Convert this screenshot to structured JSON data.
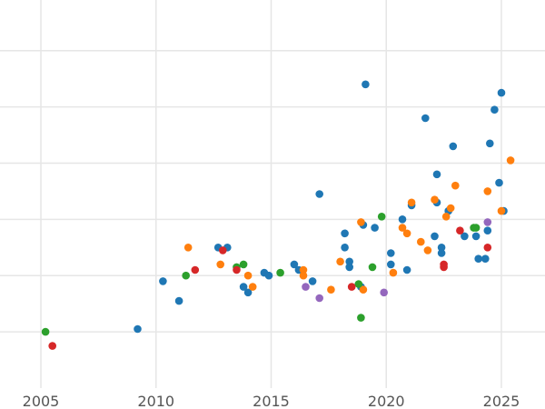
{
  "chart_data": {
    "type": "scatter",
    "title": "",
    "xlabel": "",
    "ylabel": "",
    "xlim": [
      2003.3,
      2026.6
    ],
    "ylim": [
      0,
      6.9
    ],
    "x_ticks": [
      2005,
      2010,
      2015,
      2020,
      2025
    ],
    "y_gridlines": [
      1,
      2,
      3,
      4,
      5,
      6
    ],
    "y_tick_labels_visible": false,
    "grid": true,
    "legend": "none",
    "series": [
      {
        "color": "#1f77b4",
        "points": [
          [
            2009.2,
            1.05
          ],
          [
            2010.3,
            1.9
          ],
          [
            2011.0,
            1.55
          ],
          [
            2012.7,
            2.5
          ],
          [
            2013.1,
            2.5
          ],
          [
            2013.8,
            1.8
          ],
          [
            2014.0,
            1.7
          ],
          [
            2014.7,
            2.05
          ],
          [
            2014.9,
            2.0
          ],
          [
            2016.0,
            2.2
          ],
          [
            2016.2,
            2.1
          ],
          [
            2016.8,
            1.9
          ],
          [
            2017.1,
            3.45
          ],
          [
            2018.2,
            2.75
          ],
          [
            2018.2,
            2.5
          ],
          [
            2018.4,
            2.25
          ],
          [
            2018.4,
            2.15
          ],
          [
            2018.9,
            1.8
          ],
          [
            2019.0,
            2.9
          ],
          [
            2019.1,
            5.4
          ],
          [
            2019.5,
            2.85
          ],
          [
            2020.2,
            2.4
          ],
          [
            2020.2,
            2.2
          ],
          [
            2020.7,
            3.0
          ],
          [
            2020.9,
            2.1
          ],
          [
            2021.1,
            3.25
          ],
          [
            2021.7,
            4.8
          ],
          [
            2022.1,
            2.7
          ],
          [
            2022.2,
            3.3
          ],
          [
            2022.2,
            3.8
          ],
          [
            2022.4,
            2.5
          ],
          [
            2022.4,
            2.4
          ],
          [
            2022.7,
            3.15
          ],
          [
            2022.9,
            4.3
          ],
          [
            2023.4,
            2.7
          ],
          [
            2023.9,
            2.7
          ],
          [
            2024.0,
            2.3
          ],
          [
            2024.3,
            2.3
          ],
          [
            2024.4,
            2.8
          ],
          [
            2024.5,
            4.35
          ],
          [
            2024.7,
            4.95
          ],
          [
            2024.9,
            3.65
          ],
          [
            2025.0,
            5.25
          ],
          [
            2025.1,
            3.15
          ]
        ]
      },
      {
        "color": "#ff7f0e",
        "points": [
          [
            2011.4,
            2.5
          ],
          [
            2012.8,
            2.2
          ],
          [
            2014.0,
            2.0
          ],
          [
            2014.2,
            1.8
          ],
          [
            2016.4,
            2.1
          ],
          [
            2016.4,
            2.0
          ],
          [
            2017.6,
            1.75
          ],
          [
            2018.0,
            2.25
          ],
          [
            2018.9,
            2.95
          ],
          [
            2019.0,
            1.75
          ],
          [
            2020.3,
            2.05
          ],
          [
            2020.7,
            2.85
          ],
          [
            2020.9,
            2.75
          ],
          [
            2021.1,
            3.3
          ],
          [
            2021.5,
            2.6
          ],
          [
            2021.8,
            2.45
          ],
          [
            2022.1,
            3.35
          ],
          [
            2022.6,
            3.05
          ],
          [
            2022.8,
            3.2
          ],
          [
            2023.0,
            3.6
          ],
          [
            2024.4,
            3.5
          ],
          [
            2025.0,
            3.15
          ],
          [
            2025.4,
            4.05
          ]
        ]
      },
      {
        "color": "#2ca02c",
        "points": [
          [
            2005.2,
            1.0
          ],
          [
            2011.3,
            2.0
          ],
          [
            2013.5,
            2.15
          ],
          [
            2013.8,
            2.2
          ],
          [
            2015.4,
            2.05
          ],
          [
            2018.8,
            1.85
          ],
          [
            2018.9,
            1.25
          ],
          [
            2019.4,
            2.15
          ],
          [
            2019.8,
            3.05
          ],
          [
            2023.8,
            2.85
          ],
          [
            2023.9,
            2.85
          ]
        ]
      },
      {
        "color": "#d62728",
        "points": [
          [
            2005.5,
            0.75
          ],
          [
            2011.7,
            2.1
          ],
          [
            2012.9,
            2.45
          ],
          [
            2013.5,
            2.1
          ],
          [
            2018.5,
            1.8
          ],
          [
            2022.5,
            2.2
          ],
          [
            2022.5,
            2.15
          ],
          [
            2023.2,
            2.8
          ],
          [
            2024.4,
            2.5
          ]
        ]
      },
      {
        "color": "#9467bd",
        "points": [
          [
            2016.5,
            1.8
          ],
          [
            2017.1,
            1.6
          ],
          [
            2019.9,
            1.7
          ],
          [
            2024.4,
            2.95
          ]
        ]
      }
    ]
  }
}
